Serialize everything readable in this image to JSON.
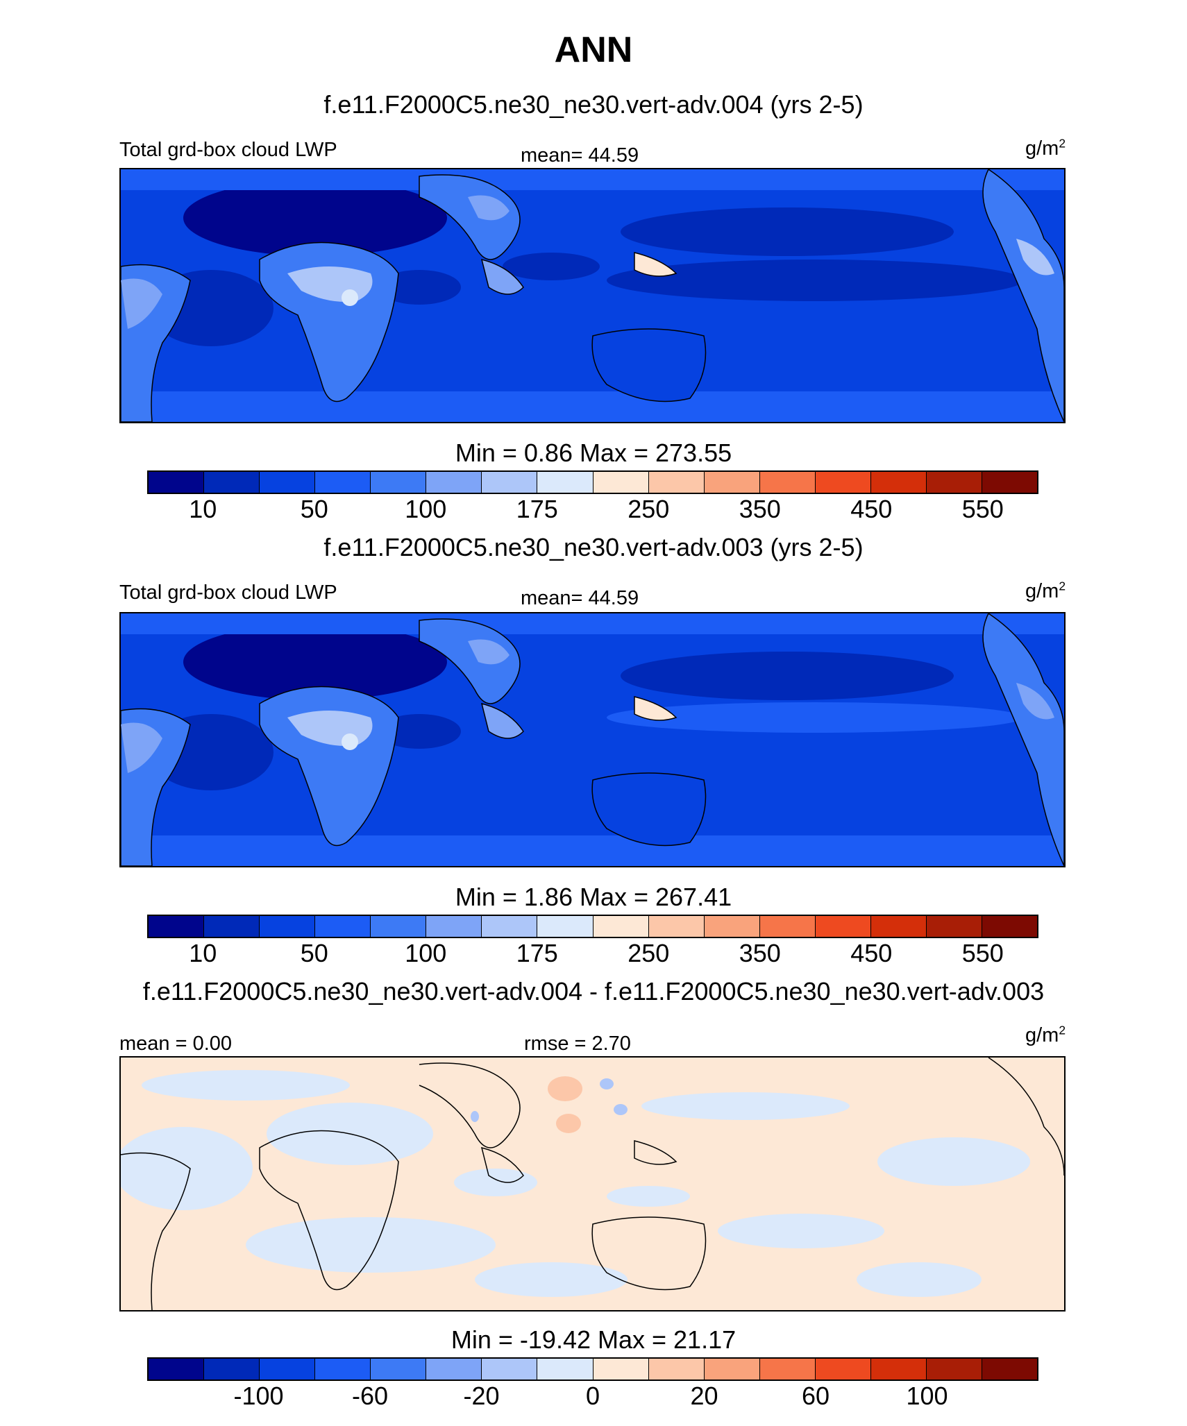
{
  "title": "ANN",
  "colors": [
    "#00058c",
    "#0029b8",
    "#0642e0",
    "#1c5cf5",
    "#3d7af5",
    "#7ea4f7",
    "#adc6f9",
    "#dbe9fb",
    "#fde8d6",
    "#fcc7a9",
    "#f9a37c",
    "#f67549",
    "#ee4a20",
    "#d42f0a",
    "#a81e06",
    "#7d0a02"
  ],
  "units": {
    "base": "g/m",
    "exp": "2"
  },
  "panels": [
    {
      "case": "f.e11.F2000C5.ne30_ne30.vert-adv.004 (yrs 2-5)",
      "left_label": "Total grd-box cloud LWP",
      "center_label": "mean=  44.59",
      "minmax": "Min =   0.86 Max = 273.55",
      "levels": [
        "10",
        "50",
        "100",
        "175",
        "250",
        "350",
        "450",
        "550"
      ]
    },
    {
      "case": "f.e11.F2000C5.ne30_ne30.vert-adv.003 (yrs 2-5)",
      "left_label": "Total grd-box cloud LWP",
      "center_label": "mean=  44.59",
      "minmax": "Min =   1.86 Max = 267.41",
      "levels": [
        "10",
        "50",
        "100",
        "175",
        "250",
        "350",
        "450",
        "550"
      ]
    },
    {
      "case": "f.e11.F2000C5.ne30_ne30.vert-adv.004 - f.e11.F2000C5.ne30_ne30.vert-adv.003",
      "left_label": "mean =   0.00",
      "center_label": "rmse =   2.70",
      "minmax": "Min = -19.42 Max =  21.17",
      "levels": [
        "-100",
        "-60",
        "-20",
        "0",
        "20",
        "60",
        "100"
      ]
    }
  ]
}
